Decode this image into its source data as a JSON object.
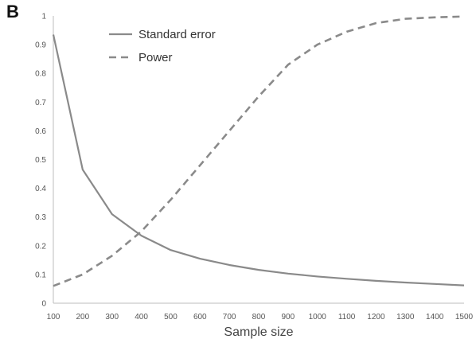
{
  "panel_label": "B",
  "colors": {
    "line": "#8a8a8a",
    "axis": "#bdbdbd",
    "text": "#555555"
  },
  "chart_data": {
    "type": "line",
    "title": "",
    "xlabel": "Sample size",
    "ylabel": "",
    "x": [
      100,
      200,
      300,
      400,
      500,
      600,
      700,
      800,
      900,
      1000,
      1100,
      1200,
      1300,
      1400,
      1500
    ],
    "xlim": [
      100,
      1500
    ],
    "ylim": [
      0,
      1
    ],
    "x_ticks": [
      "100",
      "200",
      "300",
      "400",
      "500",
      "600",
      "700",
      "800",
      "900",
      "1000",
      "1100",
      "1200",
      "1300",
      "1400",
      "1500"
    ],
    "y_ticks": [
      "0",
      "0.1",
      "0.2",
      "0.3",
      "0.4",
      "0.5",
      "0.6",
      "0.7",
      "0.8",
      "0.9",
      "1"
    ],
    "grid": false,
    "legend_position": "top-left",
    "series": [
      {
        "name": "Standard error",
        "style": "solid",
        "values": [
          0.935,
          0.465,
          0.31,
          0.235,
          0.185,
          0.155,
          0.133,
          0.116,
          0.103,
          0.093,
          0.085,
          0.078,
          0.072,
          0.067,
          0.062
        ]
      },
      {
        "name": "Power",
        "style": "dashed",
        "values": [
          0.06,
          0.1,
          0.165,
          0.25,
          0.36,
          0.48,
          0.6,
          0.72,
          0.83,
          0.9,
          0.945,
          0.975,
          0.99,
          0.995,
          0.998
        ]
      }
    ]
  }
}
